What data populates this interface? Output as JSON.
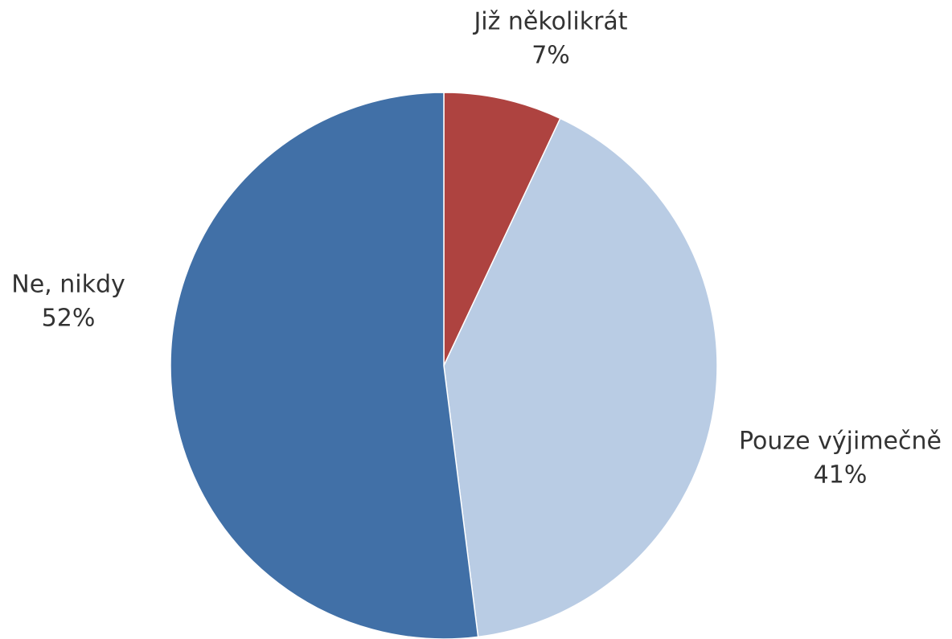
{
  "chart_data": {
    "type": "pie",
    "categories": [
      "Již několikrát",
      "Pouze výjimečně",
      "Ne, nikdy"
    ],
    "values": [
      7,
      41,
      52
    ],
    "value_labels": [
      "7%",
      "41%",
      "52%"
    ],
    "colors": [
      "#ae4340",
      "#b9cce4",
      "#4170a7"
    ]
  }
}
